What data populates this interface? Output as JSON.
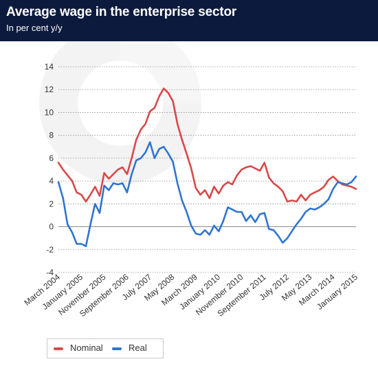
{
  "header": {
    "title": "Average wage in the enterprise sector",
    "subtitle": "In per cent y/y",
    "background": "#0c1a3d"
  },
  "chart_data": {
    "type": "line",
    "title": "Average wage in the enterprise sector",
    "subtitle": "In per cent y/y",
    "xlabel": "",
    "ylabel": "",
    "ylim": [
      -4,
      14
    ],
    "yticks": [
      -4,
      -2,
      0,
      2,
      4,
      6,
      8,
      10,
      12,
      14
    ],
    "y_grid": true,
    "legend_position": "bottom-left",
    "x_start": "March 2004",
    "x_end": "January 2015",
    "x_tick_labels": [
      "March 2004",
      "January 2005",
      "November 2005",
      "September 2006",
      "July 2007",
      "May 2008",
      "March 2009",
      "January 2010",
      "November 2010",
      "September 2011",
      "July 2012",
      "May 2013",
      "March 2014",
      "January 2015"
    ],
    "x": [
      "2004-03",
      "2004-05",
      "2004-07",
      "2004-09",
      "2004-11",
      "2005-01",
      "2005-03",
      "2005-05",
      "2005-07",
      "2005-09",
      "2005-11",
      "2006-01",
      "2006-03",
      "2006-05",
      "2006-07",
      "2006-09",
      "2006-11",
      "2007-01",
      "2007-03",
      "2007-05",
      "2007-07",
      "2007-09",
      "2007-11",
      "2008-01",
      "2008-03",
      "2008-05",
      "2008-07",
      "2008-09",
      "2008-11",
      "2009-01",
      "2009-03",
      "2009-05",
      "2009-07",
      "2009-09",
      "2009-11",
      "2010-01",
      "2010-03",
      "2010-05",
      "2010-07",
      "2010-09",
      "2010-11",
      "2011-01",
      "2011-03",
      "2011-05",
      "2011-07",
      "2011-09",
      "2011-11",
      "2012-01",
      "2012-03",
      "2012-05",
      "2012-07",
      "2012-09",
      "2012-11",
      "2013-01",
      "2013-03",
      "2013-05",
      "2013-07",
      "2013-09",
      "2013-11",
      "2014-01",
      "2014-03",
      "2014-05",
      "2014-07",
      "2014-09",
      "2014-11",
      "2015-01"
    ],
    "series": [
      {
        "name": "Nominal",
        "color": "#d94848",
        "values": [
          5.6,
          5.0,
          4.5,
          4.0,
          3.0,
          2.8,
          2.2,
          2.8,
          3.5,
          2.7,
          4.7,
          4.2,
          4.6,
          5.0,
          5.2,
          4.6,
          6.0,
          7.6,
          8.5,
          9.0,
          10.1,
          10.4,
          11.4,
          12.1,
          11.7,
          11.0,
          9.0,
          7.6,
          6.4,
          5.1,
          3.4,
          2.8,
          3.2,
          2.5,
          3.5,
          2.9,
          3.6,
          3.9,
          3.7,
          4.5,
          5.0,
          5.2,
          5.3,
          5.1,
          4.9,
          5.6,
          4.3,
          3.8,
          3.5,
          3.1,
          2.2,
          2.3,
          2.2,
          2.8,
          2.3,
          2.8,
          3.0,
          3.2,
          3.5,
          4.1,
          4.4,
          4.0,
          3.7,
          3.6,
          3.5,
          3.3
        ]
      },
      {
        "name": "Real",
        "color": "#2f74d0",
        "values": [
          3.9,
          2.5,
          0.2,
          -0.5,
          -1.5,
          -1.5,
          -1.7,
          0.2,
          2.0,
          1.2,
          3.6,
          3.2,
          3.8,
          3.7,
          3.8,
          3.0,
          4.6,
          5.8,
          6.0,
          6.5,
          7.4,
          6.0,
          6.8,
          7.0,
          6.4,
          5.7,
          3.8,
          2.3,
          1.3,
          0.1,
          -0.6,
          -0.7,
          -0.3,
          -0.7,
          0.1,
          -0.4,
          0.5,
          1.7,
          1.5,
          1.3,
          1.3,
          0.5,
          1.0,
          0.4,
          1.1,
          1.2,
          -0.2,
          -0.3,
          -0.8,
          -1.4,
          -1.0,
          -0.4,
          0.2,
          0.7,
          1.3,
          1.6,
          1.5,
          1.7,
          2.0,
          2.4,
          3.3,
          3.9,
          3.8,
          3.7,
          3.9,
          4.4
        ]
      }
    ]
  }
}
